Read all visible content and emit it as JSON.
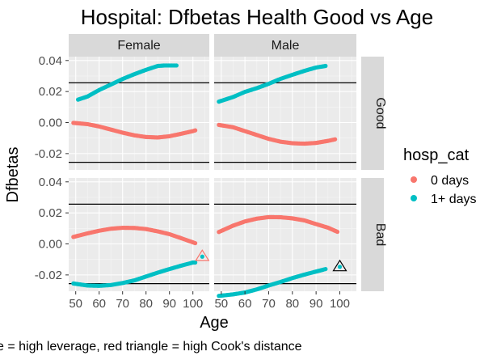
{
  "title": "Hospital: Dfbetas Health Good vs Age",
  "caption": "e = high leverage, red triangle = high Cook's distance",
  "colors": {
    "panel_bg": "#EBEBEB",
    "grid_major": "#FFFFFF",
    "strip_bg": "#D9D9D9",
    "zero_days": "#F8766D",
    "one_plus_days": "#00BFC4",
    "threshold_line": "#000000"
  },
  "chart_data": {
    "type": "scatter",
    "title": "Hospital: Dfbetas Health Good vs Age",
    "xlabel": "Age",
    "ylabel": "Dfbetas",
    "xlim": [
      47,
      107
    ],
    "ylim": [
      -0.0305,
      0.0425
    ],
    "xticks": [
      50,
      60,
      70,
      80,
      90,
      100
    ],
    "yticks": [
      -0.02,
      0.0,
      0.02,
      0.04
    ],
    "ytick_labels": [
      "-0.02",
      "0.00",
      "0.02",
      "0.04"
    ],
    "grid": true,
    "threshold_lines": [
      0.0256,
      -0.0256
    ],
    "legend": {
      "title": "hosp_cat",
      "placement": "right",
      "entries": [
        {
          "label": "0 days",
          "color": "#F8766D"
        },
        {
          "label": "1+ days",
          "color": "#00BFC4"
        }
      ]
    },
    "columns": [
      "Female",
      "Male"
    ],
    "rows": [
      "Good",
      "Bad"
    ],
    "panels": [
      {
        "sex": "Female",
        "health": "Good",
        "series": [
          {
            "name": "0 days",
            "color": "#F8766D",
            "age_range": [
              49,
              101
            ],
            "points": [
              [
                49,
                -0.0002
              ],
              [
                55,
                -0.001
              ],
              [
                60,
                -0.0025
              ],
              [
                65,
                -0.0045
              ],
              [
                70,
                -0.0065
              ],
              [
                75,
                -0.0082
              ],
              [
                80,
                -0.0093
              ],
              [
                85,
                -0.0096
              ],
              [
                90,
                -0.0088
              ],
              [
                95,
                -0.0072
              ],
              [
                100,
                -0.0055
              ],
              [
                101,
                -0.005
              ]
            ]
          },
          {
            "name": "1+ days",
            "color": "#00BFC4",
            "age_range": [
              51,
              93
            ],
            "points": [
              [
                51,
                0.0148
              ],
              [
                55,
                0.0168
              ],
              [
                60,
                0.021
              ],
              [
                65,
                0.0245
              ],
              [
                70,
                0.0281
              ],
              [
                75,
                0.0312
              ],
              [
                80,
                0.034
              ],
              [
                85,
                0.0365
              ],
              [
                88,
                0.0368
              ],
              [
                91,
                0.0368
              ],
              [
                93,
                0.0368
              ]
            ]
          }
        ],
        "markers": []
      },
      {
        "sex": "Male",
        "health": "Good",
        "series": [
          {
            "name": "0 days",
            "color": "#F8766D",
            "age_range": [
              49,
              98
            ],
            "points": [
              [
                49,
                -0.0015
              ],
              [
                55,
                -0.003
              ],
              [
                60,
                -0.0055
              ],
              [
                65,
                -0.008
              ],
              [
                70,
                -0.0105
              ],
              [
                75,
                -0.0123
              ],
              [
                80,
                -0.0133
              ],
              [
                85,
                -0.0136
              ],
              [
                90,
                -0.0131
              ],
              [
                95,
                -0.0118
              ],
              [
                98,
                -0.0108
              ]
            ]
          },
          {
            "name": "1+ days",
            "color": "#00BFC4",
            "age_range": [
              49,
              94
            ],
            "points": [
              [
                49,
                0.0135
              ],
              [
                55,
                0.0165
              ],
              [
                60,
                0.0198
              ],
              [
                65,
                0.0222
              ],
              [
                70,
                0.025
              ],
              [
                75,
                0.0282
              ],
              [
                80,
                0.0308
              ],
              [
                85,
                0.0333
              ],
              [
                90,
                0.0355
              ],
              [
                94,
                0.0365
              ]
            ]
          }
        ],
        "markers": []
      },
      {
        "sex": "Female",
        "health": "Bad",
        "series": [
          {
            "name": "0 days",
            "color": "#F8766D",
            "age_range": [
              49,
              101
            ],
            "points": [
              [
                49,
                0.0045
              ],
              [
                55,
                0.0068
              ],
              [
                60,
                0.0085
              ],
              [
                65,
                0.0098
              ],
              [
                70,
                0.0104
              ],
              [
                75,
                0.0103
              ],
              [
                80,
                0.0096
              ],
              [
                85,
                0.0081
              ],
              [
                90,
                0.0063
              ],
              [
                95,
                0.0037
              ],
              [
                101,
                0.0005
              ]
            ]
          },
          {
            "name": "1+ days",
            "color": "#00BFC4",
            "age_range": [
              49,
              101
            ],
            "points": [
              [
                49,
                -0.0255
              ],
              [
                55,
                -0.0268
              ],
              [
                60,
                -0.027
              ],
              [
                65,
                -0.0265
              ],
              [
                70,
                -0.0252
              ],
              [
                75,
                -0.0235
              ],
              [
                80,
                -0.021
              ],
              [
                85,
                -0.0185
              ],
              [
                90,
                -0.0162
              ],
              [
                95,
                -0.014
              ],
              [
                100,
                -0.012
              ]
            ]
          }
        ],
        "markers": [
          {
            "kind": "red-triangle",
            "age": 104,
            "value": -0.0082,
            "point_color": "#00BFC4",
            "marker_color": "#F8766D"
          }
        ]
      },
      {
        "sex": "Male",
        "health": "Bad",
        "series": [
          {
            "name": "0 days",
            "color": "#F8766D",
            "age_range": [
              49,
              99
            ],
            "points": [
              [
                49,
                0.0077
              ],
              [
                55,
                0.0118
              ],
              [
                60,
                0.0145
              ],
              [
                65,
                0.0163
              ],
              [
                70,
                0.0173
              ],
              [
                75,
                0.0172
              ],
              [
                80,
                0.0165
              ],
              [
                85,
                0.0152
              ],
              [
                90,
                0.0128
              ],
              [
                95,
                0.0105
              ],
              [
                99,
                0.0078
              ]
            ]
          },
          {
            "name": "1+ days",
            "color": "#00BFC4",
            "age_range": [
              49,
              94
            ],
            "points": [
              [
                49,
                -0.0335
              ],
              [
                55,
                -0.0325
              ],
              [
                60,
                -0.0313
              ],
              [
                65,
                -0.0293
              ],
              [
                70,
                -0.0268
              ],
              [
                75,
                -0.0245
              ],
              [
                80,
                -0.022
              ],
              [
                85,
                -0.0198
              ],
              [
                90,
                -0.0178
              ],
              [
                94,
                -0.0162
              ]
            ]
          }
        ],
        "markers": [
          {
            "kind": "black-triangle",
            "age": 100,
            "value": -0.0148,
            "point_color": "#00BFC4",
            "marker_color": "#000000"
          }
        ]
      }
    ]
  }
}
